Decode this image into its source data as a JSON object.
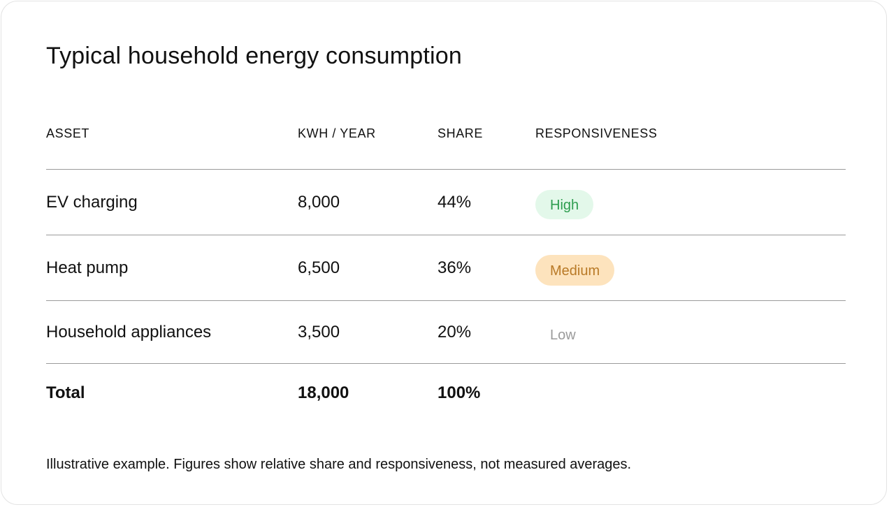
{
  "title": "Typical household energy consumption",
  "table": {
    "headers": {
      "asset": "ASSET",
      "kwh": "KWH / YEAR",
      "share": "SHARE",
      "responsiveness": "RESPONSIVENESS"
    },
    "rows": [
      {
        "asset": "EV charging",
        "kwh": "8,000",
        "share": "44%",
        "responsiveness": "High"
      },
      {
        "asset": "Heat pump",
        "kwh": "6,500",
        "share": "36%",
        "responsiveness": "Medium"
      },
      {
        "asset": "Household appliances",
        "kwh": "3,500",
        "share": "20%",
        "responsiveness": "Low"
      }
    ],
    "total": {
      "label": "Total",
      "kwh": "18,000",
      "share": "100%"
    }
  },
  "colors": {
    "high_badge_bg": "#e3f8ea",
    "high_badge_text": "#2e9d4f",
    "medium_badge_bg": "#fde3bd",
    "medium_badge_text": "#b97a27",
    "low_badge_text": "#9a9a9a"
  },
  "footnote": "Illustrative example. Figures show relative share and responsiveness, not measured averages."
}
